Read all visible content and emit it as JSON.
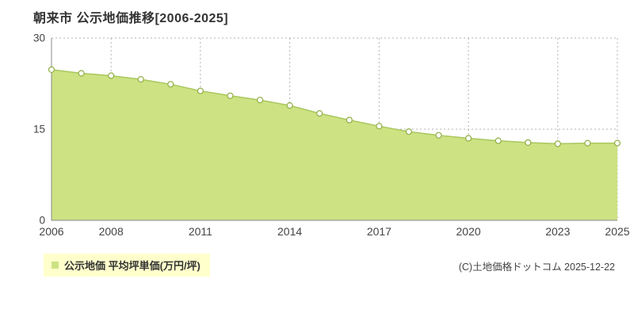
{
  "title": "朝来市 公示地価推移[2006-2025]",
  "legend": {
    "label": "公示地価 平均坪単価(万円/坪)"
  },
  "copyright": "(C)土地価格ドットコム 2025-12-22",
  "chart_data": {
    "type": "area",
    "title": "朝来市 公示地価推移[2006-2025]",
    "xlabel": "",
    "ylabel": "平均坪単価(万円/坪)",
    "x": [
      2006,
      2007,
      2008,
      2009,
      2010,
      2011,
      2012,
      2013,
      2014,
      2015,
      2016,
      2017,
      2018,
      2019,
      2020,
      2021,
      2022,
      2023,
      2024,
      2025
    ],
    "values": [
      24.8,
      24.2,
      23.8,
      23.2,
      22.4,
      21.3,
      20.5,
      19.8,
      18.9,
      17.6,
      16.5,
      15.5,
      14.6,
      14.0,
      13.5,
      13.1,
      12.8,
      12.6,
      12.7,
      12.7
    ],
    "series_name": "公示地価 平均坪単価(万円/坪)",
    "ylim": [
      0,
      30
    ],
    "yticks": [
      0,
      15,
      30
    ],
    "xticks": [
      2006,
      2008,
      2011,
      2014,
      2017,
      2020,
      2023,
      2025
    ],
    "grid": "dotted",
    "legend_position": "bottom-left",
    "colors": {
      "fill": "#cde283",
      "line": "#a9c75e",
      "marker_fill": "#ffffff",
      "marker_stroke": "#8fae43",
      "grid": "#b3b3b3",
      "axis": "#888888",
      "tick_text": "#444444",
      "legend_bg": "#ffffcc"
    }
  }
}
